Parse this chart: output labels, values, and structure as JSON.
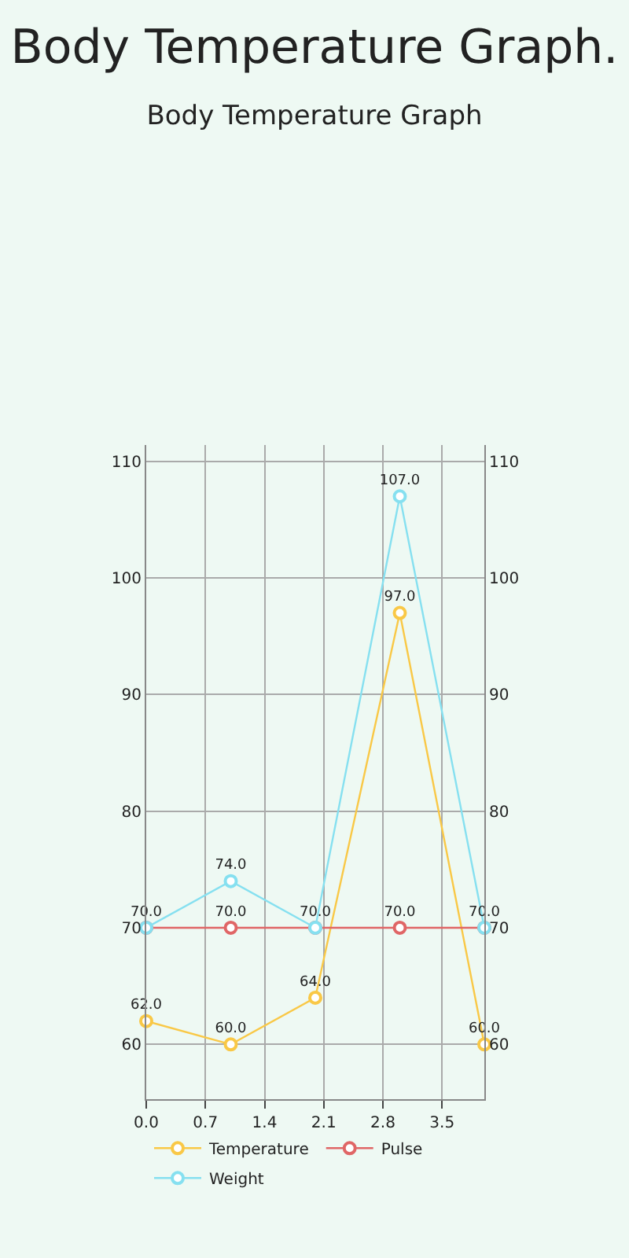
{
  "chart_data": {
    "type": "line",
    "title": "Body Temperature Graph.",
    "subtitle": "Body Temperature Graph",
    "x": [
      0,
      1,
      2,
      3,
      4
    ],
    "series": [
      {
        "name": "Temperature",
        "color": "#f9c846",
        "values": [
          62,
          60,
          64,
          97,
          60
        ],
        "value_labels": [
          "62.0",
          "60.0",
          "64.0",
          "97.0",
          "60.0"
        ]
      },
      {
        "name": "Pulse",
        "color": "#e06666",
        "values": [
          70,
          70,
          70,
          70,
          70
        ],
        "value_labels": [
          null,
          "70.0",
          null,
          "70.0",
          null
        ]
      },
      {
        "name": "Weight",
        "color": "#86e0f0",
        "values": [
          70,
          74,
          70,
          107,
          70
        ],
        "value_labels": [
          "70.0",
          "74.0",
          "70.0",
          "107.0",
          "70.0"
        ]
      }
    ],
    "xlim": [
      0,
      4
    ],
    "xticks": [
      {
        "value": 0,
        "label": "0.0"
      },
      {
        "value": 0.7,
        "label": "0.7"
      },
      {
        "value": 1.4,
        "label": "1.4"
      },
      {
        "value": 2.1,
        "label": "2.1"
      },
      {
        "value": 2.8,
        "label": "2.8"
      },
      {
        "value": 3.5,
        "label": "3.5"
      }
    ],
    "ylim": [
      55.3,
      111.4
    ],
    "yticks": [
      60,
      70,
      80,
      90,
      100,
      110
    ],
    "y2lim": [
      55.3,
      111.4
    ],
    "y2ticks": [
      60,
      70,
      80,
      90,
      100,
      110
    ],
    "grid": true,
    "legend": "bottom left",
    "marker": "circle",
    "line_style": "solid"
  }
}
